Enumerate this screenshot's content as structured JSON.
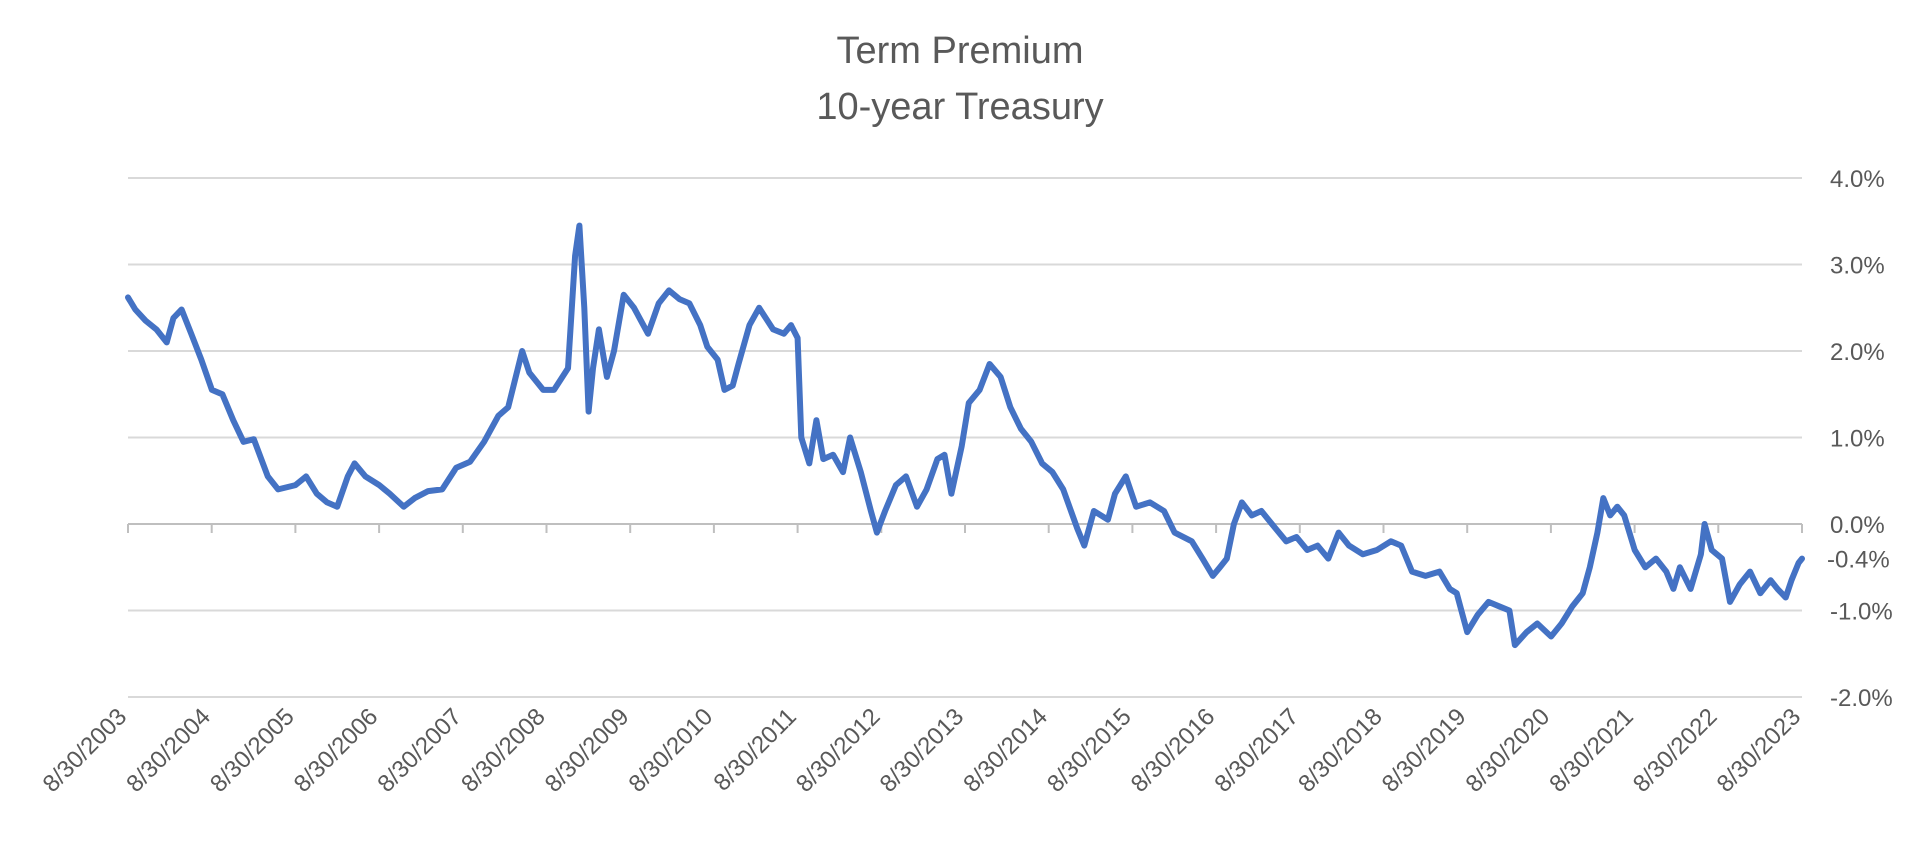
{
  "chart_data": {
    "type": "line",
    "title": "Term Premium",
    "subtitle": "10-year Treasury",
    "xlabel": "",
    "ylabel": "",
    "y_axis_position": "right",
    "ylim": [
      -2.0,
      4.0
    ],
    "y_ticks": [
      "4.0%",
      "3.0%",
      "2.0%",
      "1.0%",
      "0.0%",
      "-1.0%",
      "-2.0%"
    ],
    "y_tick_values": [
      4.0,
      3.0,
      2.0,
      1.0,
      0.0,
      -1.0,
      -2.0
    ],
    "x_range": [
      "2003-08-30",
      "2023-08-30"
    ],
    "x_ticks": [
      "8/30/2003",
      "8/30/2004",
      "8/30/2005",
      "8/30/2006",
      "8/30/2007",
      "8/30/2008",
      "8/30/2009",
      "8/30/2010",
      "8/30/2011",
      "8/30/2012",
      "8/30/2013",
      "8/30/2014",
      "8/30/2015",
      "8/30/2016",
      "8/30/2017",
      "8/30/2018",
      "8/30/2019",
      "8/30/2020",
      "8/30/2021",
      "8/30/2022",
      "8/30/2023"
    ],
    "grid": true,
    "legend": "none",
    "line_color": "#4472C4",
    "last_value_label": "-0.4%",
    "series": [
      {
        "values": [
          [
            "2003-08-30",
            2.62
          ],
          [
            "2003-10-01",
            2.48
          ],
          [
            "2003-11-15",
            2.35
          ],
          [
            "2004-01-01",
            2.25
          ],
          [
            "2004-02-15",
            2.1
          ],
          [
            "2004-03-15",
            2.38
          ],
          [
            "2004-04-20",
            2.48
          ],
          [
            "2004-06-01",
            2.2
          ],
          [
            "2004-07-15",
            1.9
          ],
          [
            "2004-08-30",
            1.55
          ],
          [
            "2004-10-15",
            1.5
          ],
          [
            "2004-12-01",
            1.2
          ],
          [
            "2005-01-15",
            0.95
          ],
          [
            "2005-03-01",
            0.98
          ],
          [
            "2005-05-01",
            0.55
          ],
          [
            "2005-06-15",
            0.4
          ],
          [
            "2005-08-30",
            0.45
          ],
          [
            "2005-10-15",
            0.55
          ],
          [
            "2005-12-01",
            0.35
          ],
          [
            "2006-01-15",
            0.25
          ],
          [
            "2006-02-28",
            0.2
          ],
          [
            "2006-04-15",
            0.55
          ],
          [
            "2006-05-15",
            0.7
          ],
          [
            "2006-07-01",
            0.55
          ],
          [
            "2006-08-30",
            0.45
          ],
          [
            "2006-10-15",
            0.35
          ],
          [
            "2006-12-15",
            0.2
          ],
          [
            "2007-02-01",
            0.3
          ],
          [
            "2007-04-01",
            0.38
          ],
          [
            "2007-06-01",
            0.4
          ],
          [
            "2007-08-01",
            0.65
          ],
          [
            "2007-10-01",
            0.72
          ],
          [
            "2007-12-01",
            0.95
          ],
          [
            "2008-02-01",
            1.25
          ],
          [
            "2008-03-15",
            1.35
          ],
          [
            "2008-05-15",
            2.0
          ],
          [
            "2008-06-15",
            1.75
          ],
          [
            "2008-08-15",
            1.55
          ],
          [
            "2008-10-01",
            1.55
          ],
          [
            "2008-12-01",
            1.8
          ],
          [
            "2009-01-01",
            3.1
          ],
          [
            "2009-01-20",
            3.45
          ],
          [
            "2009-02-10",
            2.5
          ],
          [
            "2009-03-01",
            1.3
          ],
          [
            "2009-03-20",
            1.8
          ],
          [
            "2009-04-15",
            2.25
          ],
          [
            "2009-05-20",
            1.7
          ],
          [
            "2009-06-20",
            2.0
          ],
          [
            "2009-08-01",
            2.65
          ],
          [
            "2009-09-15",
            2.5
          ],
          [
            "2009-11-15",
            2.2
          ],
          [
            "2010-01-01",
            2.55
          ],
          [
            "2010-02-15",
            2.7
          ],
          [
            "2010-04-01",
            2.6
          ],
          [
            "2010-05-15",
            2.55
          ],
          [
            "2010-07-01",
            2.3
          ],
          [
            "2010-08-01",
            2.05
          ],
          [
            "2010-09-15",
            1.9
          ],
          [
            "2010-10-15",
            1.55
          ],
          [
            "2010-11-20",
            1.6
          ],
          [
            "2010-12-15",
            1.85
          ],
          [
            "2011-02-01",
            2.3
          ],
          [
            "2011-03-15",
            2.5
          ],
          [
            "2011-05-15",
            2.25
          ],
          [
            "2011-07-01",
            2.2
          ],
          [
            "2011-08-01",
            2.3
          ],
          [
            "2011-08-30",
            2.15
          ],
          [
            "2011-09-15",
            1.0
          ],
          [
            "2011-10-20",
            0.7
          ],
          [
            "2011-11-20",
            1.2
          ],
          [
            "2011-12-20",
            0.75
          ],
          [
            "2012-02-01",
            0.8
          ],
          [
            "2012-03-15",
            0.6
          ],
          [
            "2012-04-15",
            1.0
          ],
          [
            "2012-06-01",
            0.6
          ],
          [
            "2012-07-15",
            0.15
          ],
          [
            "2012-08-10",
            -0.1
          ],
          [
            "2012-09-15",
            0.15
          ],
          [
            "2012-11-01",
            0.45
          ],
          [
            "2012-12-15",
            0.55
          ],
          [
            "2013-02-01",
            0.2
          ],
          [
            "2013-03-15",
            0.4
          ],
          [
            "2013-05-01",
            0.75
          ],
          [
            "2013-06-01",
            0.8
          ],
          [
            "2013-07-01",
            0.35
          ],
          [
            "2013-08-15",
            0.9
          ],
          [
            "2013-09-15",
            1.4
          ],
          [
            "2013-11-01",
            1.55
          ],
          [
            "2013-12-15",
            1.85
          ],
          [
            "2014-02-01",
            1.7
          ],
          [
            "2014-03-15",
            1.35
          ],
          [
            "2014-05-01",
            1.1
          ],
          [
            "2014-06-15",
            0.95
          ],
          [
            "2014-08-01",
            0.7
          ],
          [
            "2014-09-15",
            0.6
          ],
          [
            "2014-11-01",
            0.4
          ],
          [
            "2015-01-01",
            -0.05
          ],
          [
            "2015-02-01",
            -0.25
          ],
          [
            "2015-03-15",
            0.15
          ],
          [
            "2015-05-15",
            0.05
          ],
          [
            "2015-06-15",
            0.35
          ],
          [
            "2015-08-01",
            0.55
          ],
          [
            "2015-09-15",
            0.2
          ],
          [
            "2015-11-15",
            0.25
          ],
          [
            "2016-01-15",
            0.15
          ],
          [
            "2016-03-01",
            -0.1
          ],
          [
            "2016-05-15",
            -0.2
          ],
          [
            "2016-07-01",
            -0.4
          ],
          [
            "2016-08-15",
            -0.6
          ],
          [
            "2016-09-15",
            -0.5
          ],
          [
            "2016-10-15",
            -0.4
          ],
          [
            "2016-11-15",
            0.0
          ],
          [
            "2016-12-20",
            0.25
          ],
          [
            "2017-02-01",
            0.1
          ],
          [
            "2017-03-15",
            0.15
          ],
          [
            "2017-05-15",
            -0.05
          ],
          [
            "2017-07-01",
            -0.2
          ],
          [
            "2017-08-15",
            -0.15
          ],
          [
            "2017-10-01",
            -0.3
          ],
          [
            "2017-11-15",
            -0.25
          ],
          [
            "2018-01-01",
            -0.4
          ],
          [
            "2018-02-15",
            -0.1
          ],
          [
            "2018-04-01",
            -0.25
          ],
          [
            "2018-06-01",
            -0.35
          ],
          [
            "2018-08-01",
            -0.3
          ],
          [
            "2018-10-01",
            -0.2
          ],
          [
            "2018-11-15",
            -0.25
          ],
          [
            "2019-01-01",
            -0.55
          ],
          [
            "2019-03-01",
            -0.6
          ],
          [
            "2019-05-01",
            -0.55
          ],
          [
            "2019-06-15",
            -0.75
          ],
          [
            "2019-07-15",
            -0.8
          ],
          [
            "2019-08-30",
            -1.25
          ],
          [
            "2019-10-15",
            -1.05
          ],
          [
            "2019-12-01",
            -0.9
          ],
          [
            "2020-01-15",
            -0.95
          ],
          [
            "2020-03-01",
            -1.0
          ],
          [
            "2020-03-25",
            -1.4
          ],
          [
            "2020-05-15",
            -1.25
          ],
          [
            "2020-07-01",
            -1.15
          ],
          [
            "2020-08-30",
            -1.3
          ],
          [
            "2020-10-15",
            -1.15
          ],
          [
            "2020-12-01",
            -0.95
          ],
          [
            "2021-01-15",
            -0.8
          ],
          [
            "2021-02-15",
            -0.5
          ],
          [
            "2021-03-20",
            -0.1
          ],
          [
            "2021-04-15",
            0.3
          ],
          [
            "2021-05-15",
            0.1
          ],
          [
            "2021-06-15",
            0.2
          ],
          [
            "2021-07-15",
            0.1
          ],
          [
            "2021-08-30",
            -0.3
          ],
          [
            "2021-10-15",
            -0.5
          ],
          [
            "2021-12-01",
            -0.4
          ],
          [
            "2022-01-15",
            -0.55
          ],
          [
            "2022-02-15",
            -0.75
          ],
          [
            "2022-03-15",
            -0.5
          ],
          [
            "2022-05-01",
            -0.75
          ],
          [
            "2022-06-15",
            -0.35
          ],
          [
            "2022-07-01",
            0.0
          ],
          [
            "2022-08-01",
            -0.3
          ],
          [
            "2022-09-15",
            -0.4
          ],
          [
            "2022-10-20",
            -0.9
          ],
          [
            "2022-12-01",
            -0.7
          ],
          [
            "2023-01-15",
            -0.55
          ],
          [
            "2023-03-01",
            -0.8
          ],
          [
            "2023-04-15",
            -0.65
          ],
          [
            "2023-05-15",
            -0.75
          ],
          [
            "2023-06-20",
            -0.85
          ],
          [
            "2023-07-15",
            -0.65
          ],
          [
            "2023-08-15",
            -0.45
          ],
          [
            "2023-08-30",
            -0.4
          ]
        ]
      }
    ]
  }
}
